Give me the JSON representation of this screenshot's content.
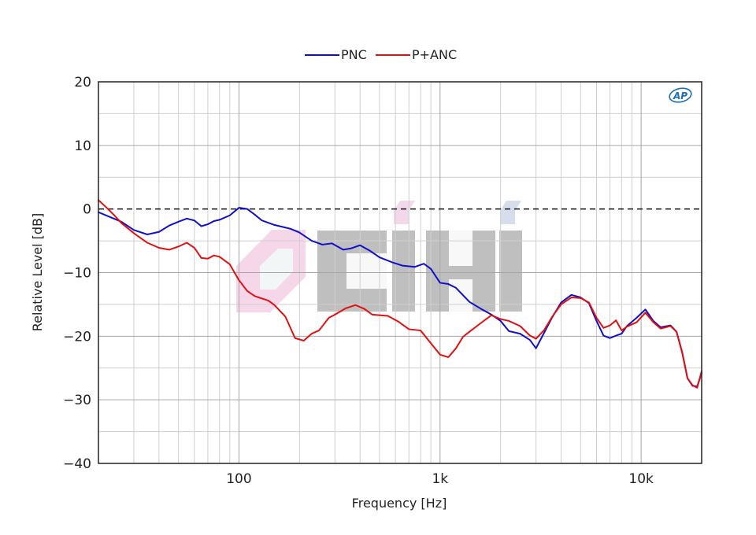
{
  "chart_data": {
    "type": "line",
    "xlabel": "Frequency [Hz]",
    "ylabel": "Relative Level [dB]",
    "x_scale": "log",
    "xlim": [
      20,
      20000
    ],
    "ylim": [
      -40,
      20
    ],
    "x_ticks": [
      {
        "value": 100,
        "label": "100"
      },
      {
        "value": 1000,
        "label": "1k"
      },
      {
        "value": 10000,
        "label": "10k"
      }
    ],
    "y_ticks": [
      {
        "value": 20,
        "label": "20"
      },
      {
        "value": 10,
        "label": "10"
      },
      {
        "value": 0,
        "label": "0"
      },
      {
        "value": -10,
        "label": "−10"
      },
      {
        "value": -20,
        "label": "−20"
      },
      {
        "value": -30,
        "label": "−30"
      },
      {
        "value": -40,
        "label": "−40"
      }
    ],
    "grid": true,
    "legend_position": "top-center",
    "reference_line": {
      "y": 0,
      "style": "dashed"
    },
    "badge_text": "AP",
    "watermark_text": "CIHI",
    "series": [
      {
        "name": "PNC",
        "color": "#1010c8",
        "points": [
          [
            20,
            -0.5
          ],
          [
            23,
            -1.3
          ],
          [
            26,
            -2.0
          ],
          [
            30,
            -3.3
          ],
          [
            35,
            -4.0
          ],
          [
            40,
            -3.6
          ],
          [
            45,
            -2.6
          ],
          [
            50,
            -2.0
          ],
          [
            55,
            -1.5
          ],
          [
            60,
            -1.8
          ],
          [
            65,
            -2.7
          ],
          [
            70,
            -2.4
          ],
          [
            75,
            -1.9
          ],
          [
            80,
            -1.7
          ],
          [
            90,
            -1.0
          ],
          [
            100,
            0.2
          ],
          [
            110,
            0.0
          ],
          [
            120,
            -0.9
          ],
          [
            130,
            -1.8
          ],
          [
            150,
            -2.5
          ],
          [
            180,
            -3.1
          ],
          [
            200,
            -3.7
          ],
          [
            230,
            -5.0
          ],
          [
            260,
            -5.6
          ],
          [
            290,
            -5.4
          ],
          [
            330,
            -6.4
          ],
          [
            360,
            -6.2
          ],
          [
            400,
            -5.7
          ],
          [
            450,
            -6.6
          ],
          [
            500,
            -7.6
          ],
          [
            580,
            -8.4
          ],
          [
            650,
            -8.9
          ],
          [
            750,
            -9.1
          ],
          [
            830,
            -8.6
          ],
          [
            900,
            -9.4
          ],
          [
            1000,
            -11.6
          ],
          [
            1100,
            -11.8
          ],
          [
            1200,
            -12.4
          ],
          [
            1400,
            -14.6
          ],
          [
            1600,
            -15.7
          ],
          [
            1800,
            -16.6
          ],
          [
            2000,
            -17.6
          ],
          [
            2200,
            -19.2
          ],
          [
            2500,
            -19.6
          ],
          [
            2800,
            -20.6
          ],
          [
            3000,
            -21.9
          ],
          [
            3300,
            -19.4
          ],
          [
            3600,
            -17.1
          ],
          [
            4000,
            -14.7
          ],
          [
            4500,
            -13.5
          ],
          [
            5000,
            -13.9
          ],
          [
            5500,
            -14.8
          ],
          [
            6000,
            -17.6
          ],
          [
            6500,
            -19.9
          ],
          [
            7000,
            -20.3
          ],
          [
            7500,
            -19.9
          ],
          [
            8000,
            -19.6
          ],
          [
            8500,
            -18.4
          ],
          [
            9500,
            -17.1
          ],
          [
            10500,
            -15.8
          ],
          [
            11500,
            -17.6
          ],
          [
            12500,
            -18.6
          ],
          [
            14000,
            -18.3
          ],
          [
            15000,
            -19.3
          ],
          [
            16000,
            -22.5
          ],
          [
            17000,
            -26.6
          ],
          [
            18000,
            -27.8
          ],
          [
            19000,
            -27.9
          ],
          [
            20000,
            -25.8
          ]
        ]
      },
      {
        "name": "P+ANC",
        "color": "#e01010",
        "points": [
          [
            20,
            1.4
          ],
          [
            22,
            0.2
          ],
          [
            24,
            -1.0
          ],
          [
            26,
            -2.2
          ],
          [
            30,
            -3.8
          ],
          [
            35,
            -5.3
          ],
          [
            40,
            -6.1
          ],
          [
            45,
            -6.4
          ],
          [
            50,
            -5.9
          ],
          [
            55,
            -5.3
          ],
          [
            60,
            -6.1
          ],
          [
            65,
            -7.7
          ],
          [
            70,
            -7.8
          ],
          [
            75,
            -7.3
          ],
          [
            80,
            -7.5
          ],
          [
            90,
            -8.7
          ],
          [
            100,
            -11.2
          ],
          [
            110,
            -12.9
          ],
          [
            120,
            -13.7
          ],
          [
            140,
            -14.4
          ],
          [
            150,
            -15.1
          ],
          [
            170,
            -16.9
          ],
          [
            190,
            -20.3
          ],
          [
            210,
            -20.7
          ],
          [
            230,
            -19.6
          ],
          [
            250,
            -19.1
          ],
          [
            280,
            -17.1
          ],
          [
            300,
            -16.6
          ],
          [
            340,
            -15.6
          ],
          [
            380,
            -15.1
          ],
          [
            420,
            -15.7
          ],
          [
            460,
            -16.6
          ],
          [
            550,
            -16.8
          ],
          [
            620,
            -17.7
          ],
          [
            700,
            -18.9
          ],
          [
            800,
            -19.1
          ],
          [
            900,
            -21.1
          ],
          [
            1000,
            -22.9
          ],
          [
            1100,
            -23.3
          ],
          [
            1200,
            -21.9
          ],
          [
            1300,
            -20.1
          ],
          [
            1400,
            -19.3
          ],
          [
            1600,
            -17.9
          ],
          [
            1800,
            -16.7
          ],
          [
            2000,
            -17.3
          ],
          [
            2200,
            -17.6
          ],
          [
            2500,
            -18.4
          ],
          [
            2800,
            -19.9
          ],
          [
            3000,
            -20.4
          ],
          [
            3300,
            -19.0
          ],
          [
            3600,
            -17.0
          ],
          [
            4000,
            -15.0
          ],
          [
            4500,
            -13.9
          ],
          [
            5000,
            -14.0
          ],
          [
            5500,
            -14.7
          ],
          [
            6000,
            -17.1
          ],
          [
            6500,
            -18.7
          ],
          [
            7000,
            -18.3
          ],
          [
            7500,
            -17.5
          ],
          [
            8000,
            -19.1
          ],
          [
            8500,
            -18.5
          ],
          [
            9500,
            -17.8
          ],
          [
            10500,
            -16.3
          ],
          [
            11500,
            -17.8
          ],
          [
            12500,
            -18.8
          ],
          [
            14000,
            -18.4
          ],
          [
            15000,
            -19.3
          ],
          [
            16000,
            -22.6
          ],
          [
            17000,
            -26.6
          ],
          [
            18000,
            -27.7
          ],
          [
            19000,
            -28.1
          ],
          [
            20000,
            -25.5
          ]
        ]
      }
    ]
  }
}
